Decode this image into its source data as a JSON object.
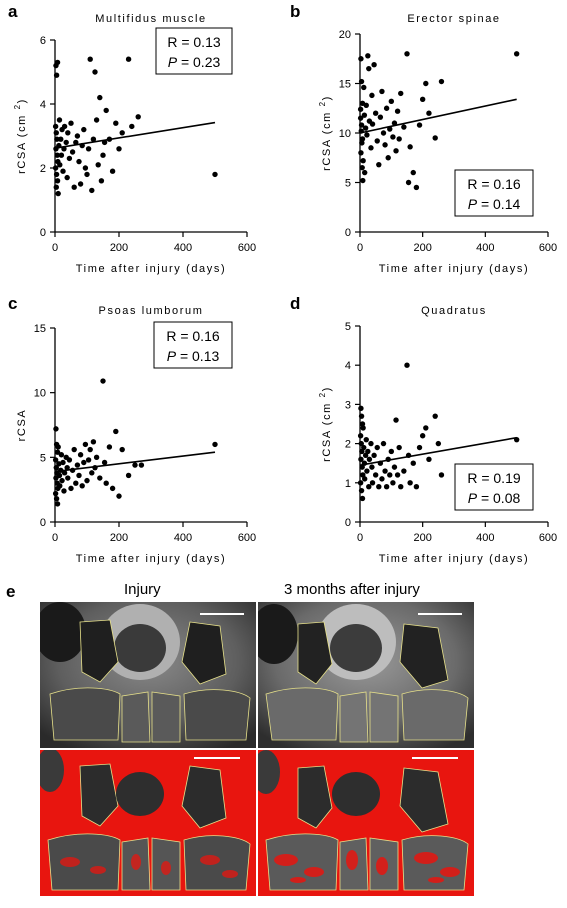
{
  "panels": {
    "a": "a",
    "b": "b",
    "c": "c",
    "d": "d",
    "e": "e"
  },
  "image_labels": {
    "left": "Injury",
    "right": "3 months after injury"
  },
  "chart_data": [
    {
      "type": "scatter",
      "title": "Multifidus muscle",
      "xlabel": "Time after injury (days)",
      "ylabel": "rCSA (cm²)",
      "ylabel_main": "rCSA (cm",
      "ylabel_sup": "2",
      "ylabel_close": ")",
      "xlim": [
        0,
        600
      ],
      "ylim": [
        0,
        6
      ],
      "xticks": [
        "0",
        "200",
        "400",
        "600"
      ],
      "xtick_values": [
        0,
        200,
        400,
        600
      ],
      "yticks": [
        "0",
        "2",
        "4",
        "6"
      ],
      "ytick_values": [
        0,
        2,
        4,
        6
      ],
      "stats": {
        "r": "R = 0.13",
        "p_label": "P",
        "p_value": " = 0.23",
        "position": "top-right"
      },
      "trendline": {
        "x": [
          0,
          500
        ],
        "y": [
          2.62,
          3.42
        ]
      },
      "points": [
        [
          3,
          5.2
        ],
        [
          5,
          4.9
        ],
        [
          8,
          5.3
        ],
        [
          2,
          3.3
        ],
        [
          4,
          3.1
        ],
        [
          6,
          2.9
        ],
        [
          3,
          2.6
        ],
        [
          7,
          2.4
        ],
        [
          9,
          2.2
        ],
        [
          2,
          2.0
        ],
        [
          5,
          1.8
        ],
        [
          8,
          1.6
        ],
        [
          4,
          1.4
        ],
        [
          10,
          1.2
        ],
        [
          12,
          2.7
        ],
        [
          14,
          3.5
        ],
        [
          15,
          2.1
        ],
        [
          18,
          2.9
        ],
        [
          20,
          2.4
        ],
        [
          22,
          3.2
        ],
        [
          25,
          1.9
        ],
        [
          28,
          2.6
        ],
        [
          30,
          3.3
        ],
        [
          35,
          2.8
        ],
        [
          38,
          1.7
        ],
        [
          40,
          3.1
        ],
        [
          45,
          2.3
        ],
        [
          50,
          3.4
        ],
        [
          55,
          2.5
        ],
        [
          60,
          1.4
        ],
        [
          65,
          2.8
        ],
        [
          70,
          3.0
        ],
        [
          75,
          2.2
        ],
        [
          80,
          1.5
        ],
        [
          85,
          2.7
        ],
        [
          90,
          3.2
        ],
        [
          95,
          2.0
        ],
        [
          100,
          1.8
        ],
        [
          105,
          2.6
        ],
        [
          110,
          5.4
        ],
        [
          115,
          1.3
        ],
        [
          120,
          2.9
        ],
        [
          125,
          5.0
        ],
        [
          130,
          3.5
        ],
        [
          135,
          2.1
        ],
        [
          140,
          4.2
        ],
        [
          145,
          1.6
        ],
        [
          150,
          2.4
        ],
        [
          155,
          2.8
        ],
        [
          160,
          3.8
        ],
        [
          170,
          2.9
        ],
        [
          180,
          1.9
        ],
        [
          190,
          3.4
        ],
        [
          200,
          2.6
        ],
        [
          210,
          3.1
        ],
        [
          230,
          5.4
        ],
        [
          240,
          3.3
        ],
        [
          260,
          3.6
        ],
        [
          500,
          1.8
        ]
      ]
    },
    {
      "type": "scatter",
      "title": "Erector spinae",
      "xlabel": "Time after injury (days)",
      "ylabel": "rCSA (cm²)",
      "ylabel_main": "rCSA (cm",
      "ylabel_sup": "2",
      "ylabel_close": ")",
      "xlim": [
        0,
        600
      ],
      "ylim": [
        0,
        20
      ],
      "xticks": [
        "0",
        "200",
        "400",
        "600"
      ],
      "xtick_values": [
        0,
        200,
        400,
        600
      ],
      "yticks": [
        "0",
        "5",
        "10",
        "15",
        "20"
      ],
      "ytick_values": [
        0,
        5,
        10,
        15,
        20
      ],
      "stats": {
        "r": "R = 0.16",
        "p_label": "P",
        "p_value": " = 0.14",
        "position": "bottom-right"
      },
      "trendline": {
        "x": [
          0,
          500
        ],
        "y": [
          10.0,
          13.4
        ]
      },
      "points": [
        [
          3,
          17.5
        ],
        [
          5,
          15.2
        ],
        [
          8,
          13.0
        ],
        [
          2,
          11.5
        ],
        [
          4,
          10.2
        ],
        [
          6,
          9.0
        ],
        [
          3,
          8.0
        ],
        [
          7,
          6.5
        ],
        [
          9,
          5.2
        ],
        [
          2,
          12.4
        ],
        [
          5,
          10.8
        ],
        [
          8,
          9.4
        ],
        [
          10,
          7.2
        ],
        [
          12,
          14.6
        ],
        [
          14,
          11.8
        ],
        [
          15,
          6.0
        ],
        [
          18,
          10.5
        ],
        [
          20,
          12.8
        ],
        [
          22,
          9.8
        ],
        [
          25,
          17.8
        ],
        [
          28,
          16.5
        ],
        [
          30,
          11.2
        ],
        [
          35,
          8.5
        ],
        [
          38,
          13.8
        ],
        [
          40,
          10.9
        ],
        [
          45,
          16.9
        ],
        [
          50,
          12.0
        ],
        [
          55,
          9.2
        ],
        [
          60,
          6.8
        ],
        [
          65,
          11.6
        ],
        [
          70,
          14.2
        ],
        [
          75,
          10.0
        ],
        [
          80,
          8.8
        ],
        [
          85,
          12.5
        ],
        [
          90,
          7.5
        ],
        [
          95,
          10.4
        ],
        [
          100,
          13.2
        ],
        [
          105,
          9.6
        ],
        [
          110,
          11.0
        ],
        [
          115,
          8.2
        ],
        [
          120,
          12.2
        ],
        [
          125,
          9.4
        ],
        [
          130,
          14.0
        ],
        [
          140,
          10.6
        ],
        [
          150,
          18.0
        ],
        [
          155,
          5.0
        ],
        [
          160,
          8.6
        ],
        [
          170,
          6.0
        ],
        [
          180,
          4.5
        ],
        [
          190,
          10.8
        ],
        [
          200,
          13.4
        ],
        [
          210,
          15.0
        ],
        [
          220,
          12.0
        ],
        [
          240,
          9.5
        ],
        [
          260,
          15.2
        ],
        [
          500,
          18.0
        ]
      ]
    },
    {
      "type": "scatter",
      "title": "Psoas lumborum",
      "xlabel": "Time after injury (days)",
      "ylabel": "rCSA",
      "xlim": [
        0,
        600
      ],
      "ylim": [
        0,
        15
      ],
      "xticks": [
        "0",
        "200",
        "400",
        "600"
      ],
      "xtick_values": [
        0,
        200,
        400,
        600
      ],
      "yticks": [
        "0",
        "5",
        "10",
        "15"
      ],
      "ytick_values": [
        0,
        5,
        10,
        15
      ],
      "stats": {
        "r": "R = 0.16",
        "p_label": "P",
        "p_value": " = 0.13",
        "position": "top-right"
      },
      "trendline": {
        "x": [
          0,
          500
        ],
        "y": [
          3.9,
          5.4
        ]
      },
      "points": [
        [
          3,
          7.2
        ],
        [
          5,
          6.0
        ],
        [
          8,
          5.4
        ],
        [
          2,
          4.8
        ],
        [
          4,
          4.2
        ],
        [
          6,
          3.8
        ],
        [
          3,
          3.4
        ],
        [
          7,
          3.0
        ],
        [
          9,
          2.6
        ],
        [
          2,
          2.2
        ],
        [
          5,
          1.8
        ],
        [
          8,
          1.4
        ],
        [
          10,
          5.8
        ],
        [
          12,
          4.5
        ],
        [
          14,
          3.6
        ],
        [
          15,
          2.8
        ],
        [
          18,
          4.0
        ],
        [
          20,
          5.2
        ],
        [
          22,
          3.2
        ],
        [
          25,
          4.6
        ],
        [
          28,
          2.4
        ],
        [
          30,
          3.8
        ],
        [
          35,
          5.0
        ],
        [
          38,
          4.2
        ],
        [
          40,
          3.4
        ],
        [
          45,
          4.8
        ],
        [
          50,
          2.6
        ],
        [
          55,
          4.0
        ],
        [
          60,
          5.6
        ],
        [
          65,
          3.0
        ],
        [
          70,
          4.4
        ],
        [
          75,
          3.6
        ],
        [
          80,
          5.2
        ],
        [
          85,
          2.8
        ],
        [
          90,
          4.6
        ],
        [
          95,
          6.0
        ],
        [
          100,
          3.2
        ],
        [
          105,
          4.8
        ],
        [
          110,
          5.6
        ],
        [
          115,
          3.8
        ],
        [
          120,
          6.2
        ],
        [
          125,
          4.2
        ],
        [
          130,
          5.0
        ],
        [
          140,
          3.4
        ],
        [
          150,
          10.9
        ],
        [
          155,
          4.6
        ],
        [
          160,
          3.0
        ],
        [
          170,
          5.8
        ],
        [
          180,
          2.6
        ],
        [
          190,
          7.0
        ],
        [
          200,
          2.0
        ],
        [
          210,
          5.6
        ],
        [
          230,
          3.6
        ],
        [
          250,
          4.4
        ],
        [
          270,
          4.4
        ],
        [
          500,
          6.0
        ]
      ]
    },
    {
      "type": "scatter",
      "title": "Quadratus",
      "xlabel": "Time after injury (days)",
      "ylabel": "rCSA (cm²)",
      "ylabel_main": "rCSA (cm",
      "ylabel_sup": "2",
      "ylabel_close": ")",
      "xlim": [
        0,
        600
      ],
      "ylim": [
        0,
        5
      ],
      "xticks": [
        "0",
        "200",
        "400",
        "600"
      ],
      "xtick_values": [
        0,
        200,
        400,
        600
      ],
      "yticks": [
        "0",
        "1",
        "2",
        "3",
        "4",
        "5"
      ],
      "ytick_values": [
        0,
        1,
        2,
        3,
        4,
        5
      ],
      "stats": {
        "r": "R = 0.19",
        "p_label": "P",
        "p_value": " = 0.08",
        "position": "bottom-right"
      },
      "trendline": {
        "x": [
          0,
          500
        ],
        "y": [
          1.45,
          2.15
        ]
      },
      "points": [
        [
          3,
          2.9
        ],
        [
          5,
          2.7
        ],
        [
          8,
          2.5
        ],
        [
          2,
          2.2
        ],
        [
          4,
          2.0
        ],
        [
          6,
          1.8
        ],
        [
          3,
          1.6
        ],
        [
          7,
          1.4
        ],
        [
          9,
          1.2
        ],
        [
          2,
          1.0
        ],
        [
          5,
          0.8
        ],
        [
          8,
          0.6
        ],
        [
          10,
          2.4
        ],
        [
          12,
          1.9
        ],
        [
          14,
          1.5
        ],
        [
          15,
          1.1
        ],
        [
          18,
          1.7
        ],
        [
          20,
          2.1
        ],
        [
          22,
          1.3
        ],
        [
          25,
          1.8
        ],
        [
          28,
          0.9
        ],
        [
          30,
          1.6
        ],
        [
          35,
          2.0
        ],
        [
          38,
          1.4
        ],
        [
          40,
          1.0
        ],
        [
          45,
          1.7
        ],
        [
          50,
          1.2
        ],
        [
          55,
          1.9
        ],
        [
          60,
          0.9
        ],
        [
          65,
          1.5
        ],
        [
          70,
          1.1
        ],
        [
          75,
          2.0
        ],
        [
          80,
          1.3
        ],
        [
          85,
          0.9
        ],
        [
          90,
          1.6
        ],
        [
          95,
          1.2
        ],
        [
          100,
          1.8
        ],
        [
          105,
          1.0
        ],
        [
          110,
          1.4
        ],
        [
          115,
          2.6
        ],
        [
          120,
          1.2
        ],
        [
          125,
          1.9
        ],
        [
          130,
          0.9
        ],
        [
          140,
          1.3
        ],
        [
          150,
          4.0
        ],
        [
          155,
          1.7
        ],
        [
          160,
          1.0
        ],
        [
          170,
          1.5
        ],
        [
          180,
          0.9
        ],
        [
          190,
          1.9
        ],
        [
          200,
          2.2
        ],
        [
          210,
          2.4
        ],
        [
          220,
          1.6
        ],
        [
          240,
          2.7
        ],
        [
          250,
          2.0
        ],
        [
          260,
          1.2
        ],
        [
          500,
          2.1
        ]
      ]
    }
  ]
}
